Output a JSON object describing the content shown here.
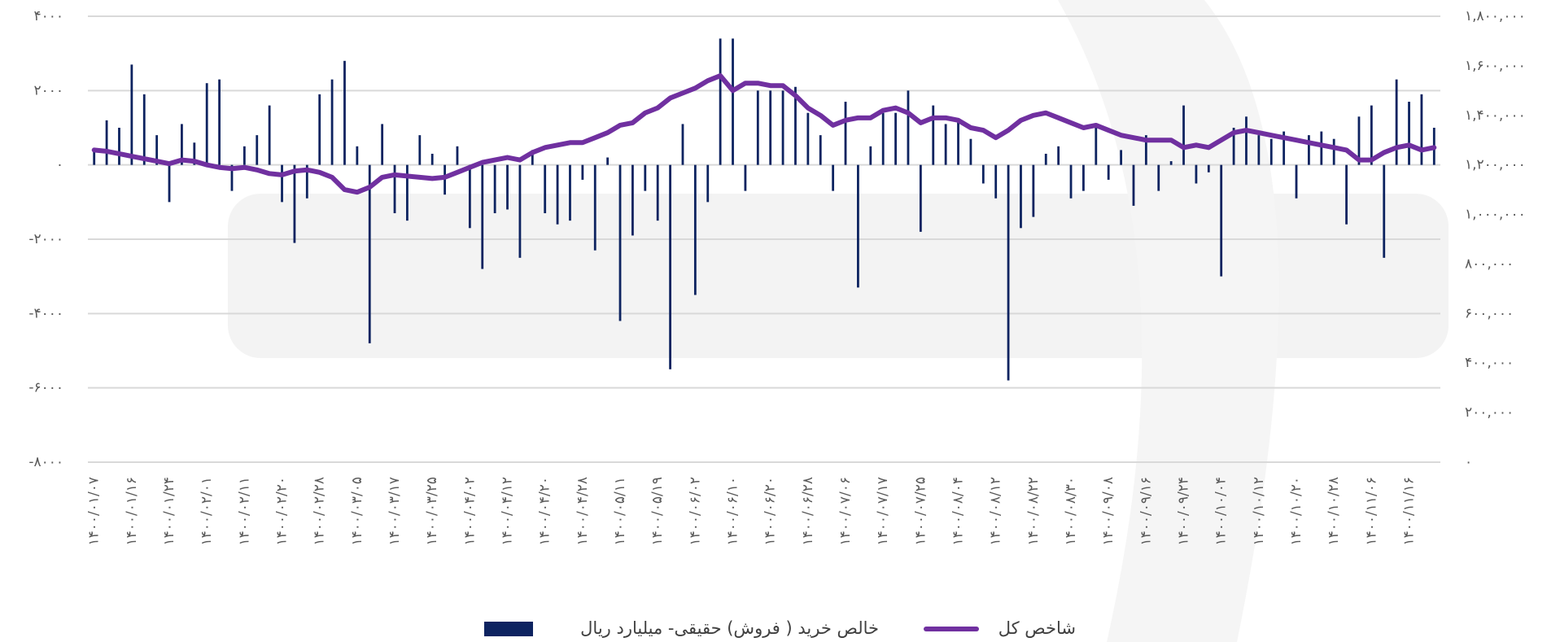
{
  "chart_data": {
    "type": "bar-line",
    "categories": [
      "۱۴۰۰/۰۱/۰۷",
      null,
      null,
      "۱۴۰۰/۰۱/۱۶",
      null,
      null,
      "۱۴۰۰/۰۱/۲۴",
      null,
      null,
      "۱۴۰۰/۰۲/۰۱",
      null,
      null,
      "۱۴۰۰/۰۲/۱۱",
      null,
      null,
      "۱۴۰۰/۰۲/۲۰",
      null,
      null,
      "۱۴۰۰/۰۲/۲۸",
      null,
      null,
      "۱۴۰۰/۰۳/۰۵",
      null,
      null,
      "۱۴۰۰/۰۳/۱۷",
      null,
      null,
      "۱۴۰۰/۰۳/۲۵",
      null,
      null,
      "۱۴۰۰/۰۴/۰۲",
      null,
      null,
      "۱۴۰۰/۰۴/۱۲",
      null,
      null,
      "۱۴۰۰/۰۴/۲۰",
      null,
      null,
      "۱۴۰۰/۰۴/۲۸",
      null,
      null,
      "۱۴۰۰/۰۵/۱۱",
      null,
      null,
      "۱۴۰۰/۰۵/۱۹",
      null,
      null,
      "۱۴۰۰/۰۶/۰۲",
      null,
      null,
      "۱۴۰۰/۰۶/۱۰",
      null,
      null,
      "۱۴۰۰/۰۶/۲۰",
      null,
      null,
      "۱۴۰۰/۰۶/۲۸",
      null,
      null,
      "۱۴۰۰/۰۷/۰۶",
      null,
      null,
      "۱۴۰۰/۰۷/۱۷",
      null,
      null,
      "۱۴۰۰/۰۷/۲۵",
      null,
      null,
      "۱۴۰۰/۰۸/۰۴",
      null,
      null,
      "۱۴۰۰/۰۸/۱۲",
      null,
      null,
      "۱۴۰۰/۰۸/۲۲",
      null,
      null,
      "۱۴۰۰/۰۸/۳۰",
      null,
      null,
      "۱۴۰۰/۰۹/۰۸",
      null,
      null,
      "۱۴۰۰/۰۹/۱۶",
      null,
      null,
      "۱۴۰۰/۰۹/۲۴",
      null,
      null,
      "۱۴۰۰/۱۰/۰۴",
      null,
      null,
      "۱۴۰۰/۱۰/۱۲",
      null,
      null,
      "۱۴۰۰/۱۰/۲۰",
      null,
      null,
      "۱۴۰۰/۱۰/۲۸",
      null,
      null,
      "۱۴۰۰/۱۱/۰۶",
      null,
      null,
      "۱۴۰۰/۱۱/۱۶",
      null,
      null
    ],
    "series": [
      {
        "name": "خالص خرید ( فروش) حقیقی- میلیارد ریال",
        "type": "bar",
        "color": "#0d2360",
        "values": [
          400,
          1200,
          1000,
          2700,
          1900,
          800,
          -1000,
          1100,
          600,
          2200,
          2300,
          -700,
          500,
          800,
          1600,
          -1000,
          -2100,
          -900,
          1900,
          2300,
          2800,
          500,
          -4800,
          1100,
          -1300,
          -1500,
          800,
          300,
          -800,
          500,
          -1700,
          -2800,
          -1300,
          -1200,
          -2500,
          400,
          -1300,
          -1600,
          -1500,
          -400,
          -2300,
          200,
          -4200,
          -1900,
          -700,
          -1500,
          -5500,
          1100,
          -3500,
          -1000,
          3400,
          3400,
          -700,
          2000,
          2000,
          2000,
          2100,
          1400,
          800,
          -700,
          1700,
          -3300,
          500,
          1400,
          1400,
          2000,
          -1800,
          1600,
          1100,
          1200,
          700,
          -500,
          -900,
          -5800,
          -1700,
          -1400,
          300,
          500,
          -900,
          -700,
          1000,
          -400,
          400,
          -1100,
          800,
          -700,
          100,
          1600,
          -500,
          -200,
          -3000,
          1000,
          1300,
          800,
          700,
          900,
          -900,
          800,
          900,
          700,
          -1600,
          1300,
          1600,
          -2500,
          2300,
          1700,
          1900,
          1000
        ]
      },
      {
        "name": "شاخص کل",
        "type": "line",
        "axis": "y2",
        "color": "#7030a0",
        "values": [
          1260000,
          1255000,
          1245000,
          1235000,
          1225000,
          1215000,
          1205000,
          1220000,
          1215000,
          1200000,
          1190000,
          1185000,
          1190000,
          1180000,
          1165000,
          1160000,
          1175000,
          1180000,
          1170000,
          1150000,
          1100000,
          1090000,
          1110000,
          1150000,
          1160000,
          1155000,
          1150000,
          1145000,
          1150000,
          1170000,
          1190000,
          1210000,
          1220000,
          1230000,
          1220000,
          1250000,
          1270000,
          1280000,
          1290000,
          1290000,
          1310000,
          1330000,
          1360000,
          1370000,
          1410000,
          1430000,
          1470000,
          1490000,
          1510000,
          1540000,
          1560000,
          1500000,
          1530000,
          1530000,
          1520000,
          1520000,
          1480000,
          1430000,
          1400000,
          1360000,
          1380000,
          1390000,
          1390000,
          1420000,
          1430000,
          1410000,
          1370000,
          1390000,
          1390000,
          1380000,
          1350000,
          1340000,
          1310000,
          1340000,
          1380000,
          1400000,
          1410000,
          1390000,
          1370000,
          1350000,
          1360000,
          1340000,
          1320000,
          1310000,
          1300000,
          1300000,
          1300000,
          1270000,
          1280000,
          1270000,
          1300000,
          1330000,
          1340000,
          1330000,
          1320000,
          1310000,
          1300000,
          1290000,
          1280000,
          1270000,
          1260000,
          1220000,
          1220000,
          1250000,
          1270000,
          1280000,
          1260000,
          1270000
        ]
      }
    ],
    "ylim": [
      -8000,
      4000
    ],
    "yticks": [
      {
        "value": -8000,
        "label": "-۸۰۰۰"
      },
      {
        "value": -6000,
        "label": "-۶۰۰۰"
      },
      {
        "value": -4000,
        "label": "-۴۰۰۰"
      },
      {
        "value": -2000,
        "label": "-۲۰۰۰"
      },
      {
        "value": 0,
        "label": "۰"
      },
      {
        "value": 2000,
        "label": "۲۰۰۰"
      },
      {
        "value": 4000,
        "label": "۴۰۰۰"
      }
    ],
    "y2lim": [
      0,
      1800000
    ],
    "y2ticks": [
      {
        "value": 0,
        "label": "۰"
      },
      {
        "value": 200000,
        "label": "۲۰۰,۰۰۰"
      },
      {
        "value": 400000,
        "label": "۴۰۰,۰۰۰"
      },
      {
        "value": 600000,
        "label": "۶۰۰,۰۰۰"
      },
      {
        "value": 800000,
        "label": "۸۰۰,۰۰۰"
      },
      {
        "value": 1000000,
        "label": "۱,۰۰۰,۰۰۰"
      },
      {
        "value": 1200000,
        "label": "۱,۲۰۰,۰۰۰"
      },
      {
        "value": 1400000,
        "label": "۱,۴۰۰,۰۰۰"
      },
      {
        "value": 1600000,
        "label": "۱,۶۰۰,۰۰۰"
      },
      {
        "value": 1800000,
        "label": "۱,۸۰۰,۰۰۰"
      }
    ],
    "grid": true,
    "legend": "bottom"
  }
}
